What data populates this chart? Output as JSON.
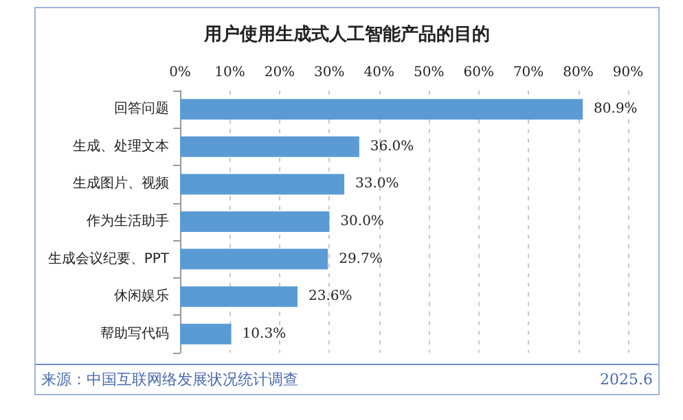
{
  "chart_data": {
    "type": "bar",
    "orientation": "horizontal",
    "title": "用户使用生成式人工智能产品的目的",
    "categories": [
      "回答问题",
      "生成、处理文本",
      "生成图片、视频",
      "作为生活助手",
      "生成会议纪要、PPT",
      "休闲娱乐",
      "帮助写代码"
    ],
    "values": [
      80.9,
      36.0,
      33.0,
      30.0,
      29.7,
      23.6,
      10.3
    ],
    "value_labels": [
      "80.9%",
      "36.0%",
      "33.0%",
      "30.0%",
      "29.7%",
      "23.6%",
      "10.3%"
    ],
    "color": "#5b9bd5",
    "xlim": [
      0,
      90
    ],
    "xticks": [
      {
        "value": 0,
        "label": "0%"
      },
      {
        "value": 10,
        "label": "10%"
      },
      {
        "value": 20,
        "label": "20%"
      },
      {
        "value": 30,
        "label": "30%"
      },
      {
        "value": 40,
        "label": "40%"
      },
      {
        "value": 50,
        "label": "50%"
      },
      {
        "value": 60,
        "label": "60%"
      },
      {
        "value": 70,
        "label": "70%"
      },
      {
        "value": 80,
        "label": "80%"
      },
      {
        "value": 90,
        "label": "90%"
      }
    ],
    "grid": "x",
    "annotations": [
      "来源：中国互联网络发展状况统计调查",
      "2025.6"
    ]
  }
}
